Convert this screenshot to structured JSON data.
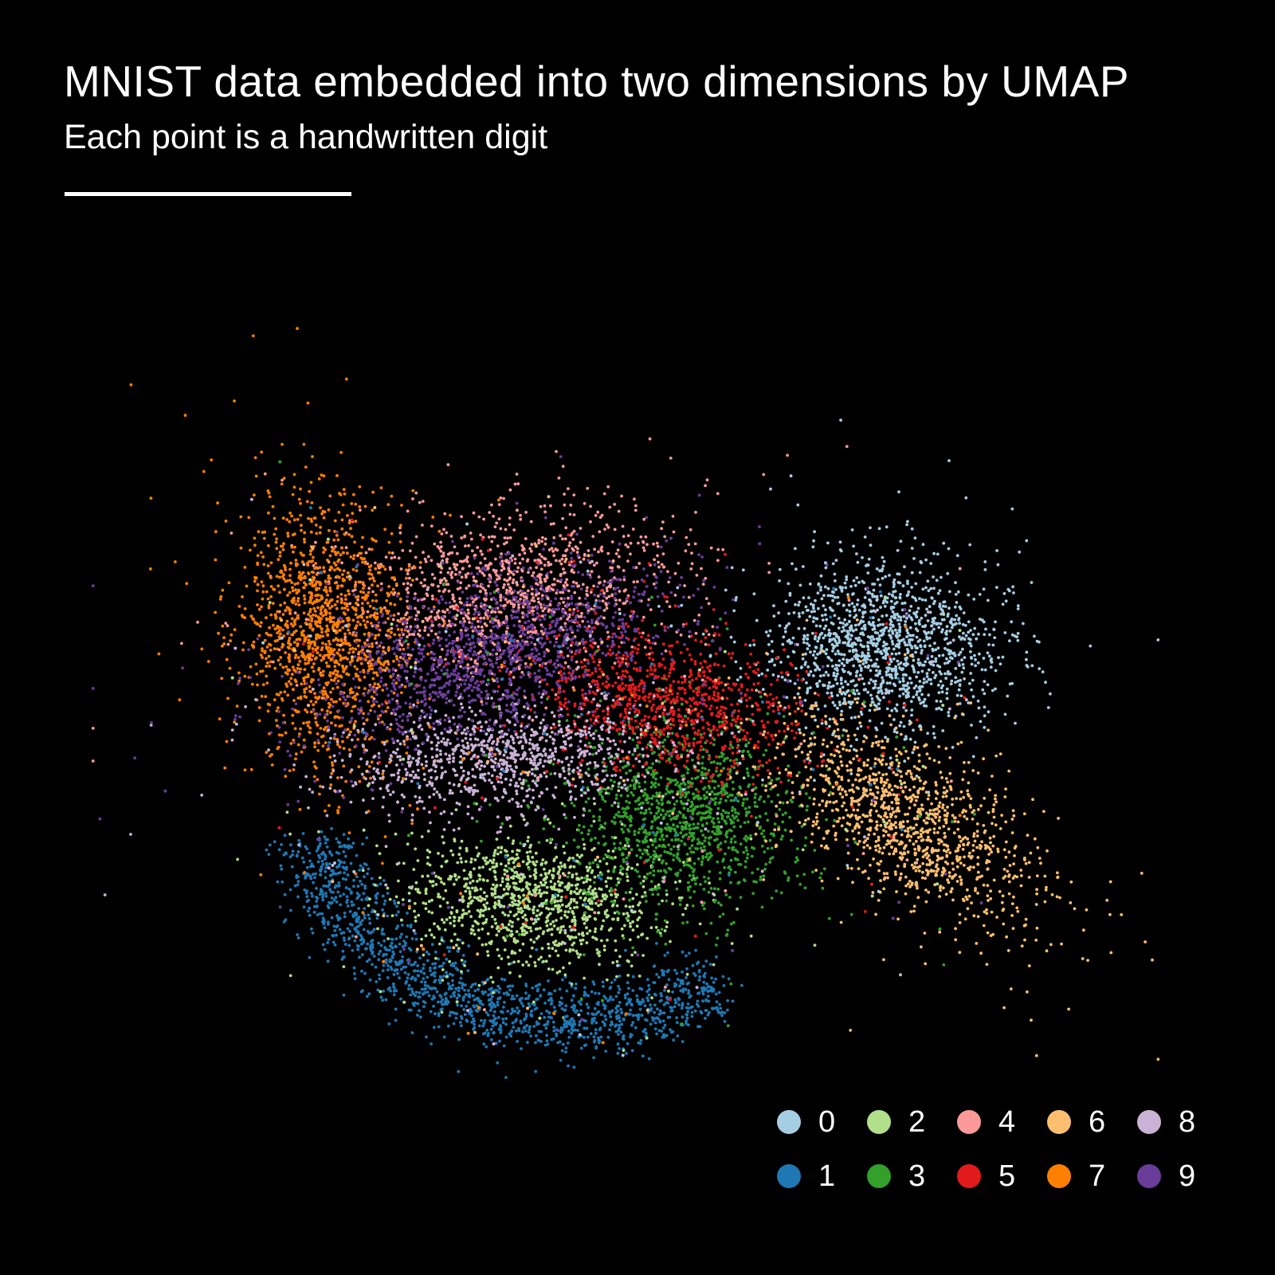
{
  "chart_data": {
    "type": "scatter",
    "title": "MNIST data embedded into two dimensions by UMAP",
    "subtitle": "Each point is a handwritten digit",
    "xlabel": "",
    "ylabel": "",
    "grid": false,
    "axes_visible": false,
    "xlim": [
      0,
      100
    ],
    "ylim": [
      0,
      100
    ],
    "legend": {
      "placement": "bottom-right",
      "columns": 5,
      "entries": [
        "0",
        "1",
        "2",
        "3",
        "4",
        "5",
        "6",
        "7",
        "8",
        "9"
      ]
    },
    "series": [
      {
        "name": "0",
        "color": "#a6cee3",
        "center": [
          74.0,
          56.5
        ],
        "spread": [
          5.2,
          4.6
        ],
        "tilt": 0,
        "shape": "blob",
        "count": 1400
      },
      {
        "name": "1",
        "color": "#1f78b4",
        "center": [
          31.0,
          20.0
        ],
        "spread": [
          3.0,
          2.0
        ],
        "shape": "arc",
        "arc": {
          "cx": 45.0,
          "cy": 40.0,
          "r": 24.0,
          "from": 190,
          "to": 305
        },
        "count": 1500
      },
      {
        "name": "2",
        "color": "#b2df8a",
        "center": [
          41.5,
          29.0
        ],
        "spread": [
          5.8,
          3.6
        ],
        "tilt": -8,
        "shape": "blob",
        "count": 1100
      },
      {
        "name": "3",
        "color": "#33a02c",
        "center": [
          55.5,
          38.0
        ],
        "spread": [
          5.2,
          4.6
        ],
        "tilt": -20,
        "shape": "blob",
        "count": 1200
      },
      {
        "name": "4",
        "color": "#fb9a99",
        "center": [
          39.0,
          62.5
        ],
        "spread": [
          7.8,
          4.4
        ],
        "tilt": 8,
        "shape": "blob",
        "count": 1200
      },
      {
        "name": "5",
        "color": "#e31a1c",
        "center": [
          53.5,
          50.5
        ],
        "spread": [
          6.4,
          3.8
        ],
        "tilt": -18,
        "shape": "blob",
        "count": 1000
      },
      {
        "name": "6",
        "color": "#fdbf6f",
        "center": [
          76.0,
          38.0
        ],
        "spread": [
          3.6,
          7.0
        ],
        "tilt": 48,
        "shape": "blob",
        "count": 1200
      },
      {
        "name": "7",
        "color": "#ff7f00",
        "center": [
          22.0,
          58.0
        ],
        "spread": [
          3.8,
          7.2
        ],
        "tilt": 4,
        "shape": "blob",
        "count": 1400
      },
      {
        "name": "8",
        "color": "#cab2d6",
        "center": [
          38.5,
          44.5
        ],
        "spread": [
          7.2,
          2.9
        ],
        "tilt": 5,
        "shape": "blob",
        "count": 1000
      },
      {
        "name": "9",
        "color": "#6a3d9a",
        "center": [
          38.0,
          56.0
        ],
        "spread": [
          8.5,
          3.8
        ],
        "tilt": 22,
        "shape": "blob",
        "count": 1300
      }
    ]
  }
}
